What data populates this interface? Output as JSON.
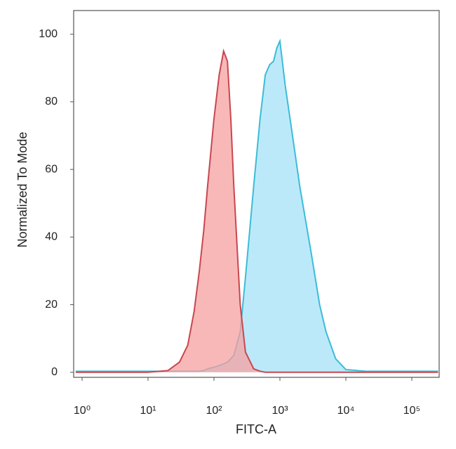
{
  "chart_data": {
    "type": "area",
    "x_label": "FITC-A",
    "y_label": "Normalized To Mode",
    "x_log": true,
    "x": [
      0.8,
      10,
      20,
      30,
      40,
      50,
      60,
      70,
      80,
      100,
      120,
      140,
      160,
      180,
      200,
      250,
      300,
      400,
      500,
      600,
      700,
      800,
      900,
      1000,
      1200,
      1500,
      2000,
      3000,
      4000,
      5000,
      7000,
      10000,
      20000,
      100000,
      250000
    ],
    "series": [
      {
        "color": "#3bbcd8",
        "fill_color": "#a6e2f7",
        "values": [
          0.3,
          0.3,
          0.3,
          0.3,
          0.3,
          0.3,
          0.3,
          0.5,
          1,
          1.5,
          2,
          2.5,
          3,
          4,
          5,
          12,
          28,
          55,
          75,
          88,
          91,
          92,
          96,
          98,
          85,
          72,
          55,
          35,
          20,
          12,
          4,
          0.8,
          0.3,
          0.3,
          0.3
        ]
      },
      {
        "color": "#c8474f",
        "fill_color": "#f7a0a0",
        "values": [
          0,
          0,
          0.5,
          3,
          8,
          18,
          30,
          42,
          55,
          75,
          88,
          95,
          92,
          75,
          55,
          20,
          6,
          1,
          0.3,
          0,
          0,
          0,
          0,
          0,
          0,
          0,
          0,
          0,
          0,
          0,
          0,
          0,
          0,
          0,
          0
        ]
      }
    ],
    "xlim": [
      0.745,
      260000
    ],
    "xticks": [
      {
        "value": 1,
        "label": "10⁰"
      },
      {
        "value": 10,
        "label": "10¹"
      },
      {
        "value": 100,
        "label": "10²"
      },
      {
        "value": 1000,
        "label": "10³"
      },
      {
        "value": 10000,
        "label": "10⁴"
      },
      {
        "value": 100000,
        "label": "10⁵"
      }
    ],
    "ylim": [
      -1.5,
      107
    ],
    "yticks": [
      0,
      20,
      40,
      60,
      80,
      100
    ]
  }
}
